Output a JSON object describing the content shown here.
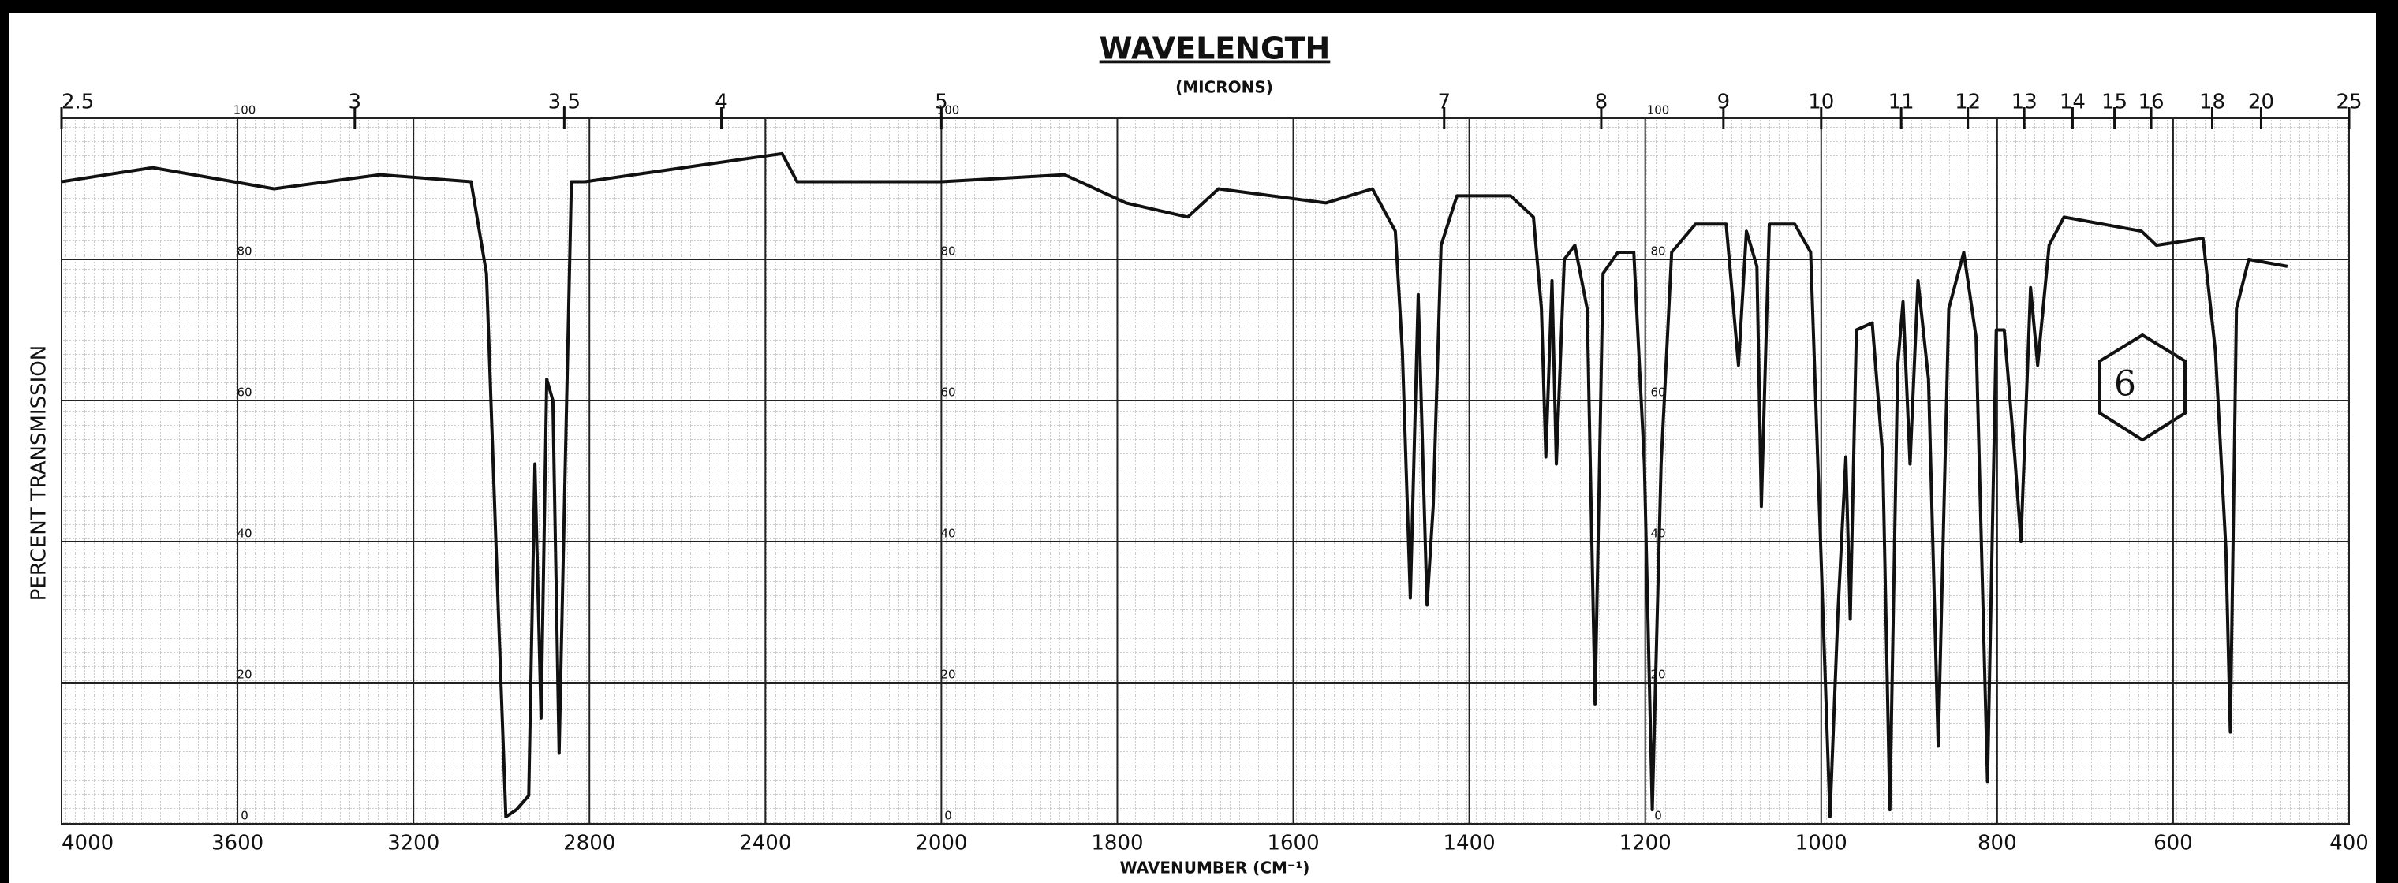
{
  "chart_data": {
    "type": "line",
    "title": "WAVELENGTH",
    "subtitle": "(MICRONS)",
    "x_label": "WAVENUMBER (CM⁻¹)",
    "y_label": "PERCENT TRANSMISSION",
    "annotation": "6",
    "color": "#111111",
    "grid": true,
    "xlim": [
      4000,
      400
    ],
    "xbreak": 2000,
    "xticks": [
      4000,
      3600,
      3200,
      2800,
      2400,
      2000,
      1800,
      1600,
      1400,
      1200,
      1000,
      800,
      600,
      400
    ],
    "x2ticks": [
      2.5,
      3,
      3.5,
      4,
      5,
      7,
      8,
      9,
      10,
      11,
      12,
      13,
      14,
      15,
      16,
      18,
      20,
      25
    ],
    "ylim": [
      0,
      100
    ],
    "yticks": [
      0,
      20,
      40,
      60,
      80,
      100
    ],
    "x": [
      4000,
      3793,
      3517,
      3276,
      3069,
      3034,
      3007,
      2990,
      2966,
      2938,
      2924,
      2910,
      2897,
      2883,
      2869,
      2855,
      2841,
      2810,
      2586,
      2362,
      2328,
      2069,
      2000,
      1860,
      1790,
      1720,
      1685,
      1563,
      1510,
      1484,
      1476,
      1467,
      1458,
      1448,
      1441,
      1432,
      1414,
      1353,
      1327,
      1318,
      1313,
      1306,
      1301,
      1292,
      1280,
      1266,
      1257,
      1248,
      1231,
      1213,
      1201,
      1192,
      1182,
      1170,
      1143,
      1108,
      1094,
      1085,
      1073,
      1068,
      1059,
      1030,
      1012,
      998,
      990,
      981,
      972,
      967,
      960,
      942,
      930,
      922,
      913,
      907,
      899,
      890,
      878,
      867,
      855,
      838,
      824,
      811,
      801,
      792,
      780,
      773,
      762,
      754,
      741,
      724,
      636,
      619,
      566,
      552,
      540,
      535,
      528,
      514,
      470
    ],
    "values": [
      91,
      93,
      90,
      92,
      91,
      78,
      30,
      1,
      2,
      4,
      51,
      15,
      63,
      60,
      10,
      51,
      91,
      91,
      93,
      95,
      91,
      91,
      91,
      92,
      88,
      86,
      90,
      88,
      90,
      84,
      67,
      32,
      75,
      31,
      45,
      82,
      89,
      89,
      86,
      73,
      52,
      77,
      51,
      80,
      82,
      73,
      17,
      78,
      81,
      81,
      51,
      2,
      51,
      81,
      85,
      85,
      65,
      84,
      79,
      45,
      85,
      85,
      81,
      30,
      1,
      30,
      52,
      29,
      70,
      71,
      52,
      2,
      65,
      74,
      51,
      77,
      63,
      11,
      73,
      81,
      69,
      6,
      70,
      70,
      52,
      40,
      76,
      65,
      82,
      86,
      84,
      82,
      83,
      67,
      39,
      13,
      73,
      80,
      79
    ]
  }
}
